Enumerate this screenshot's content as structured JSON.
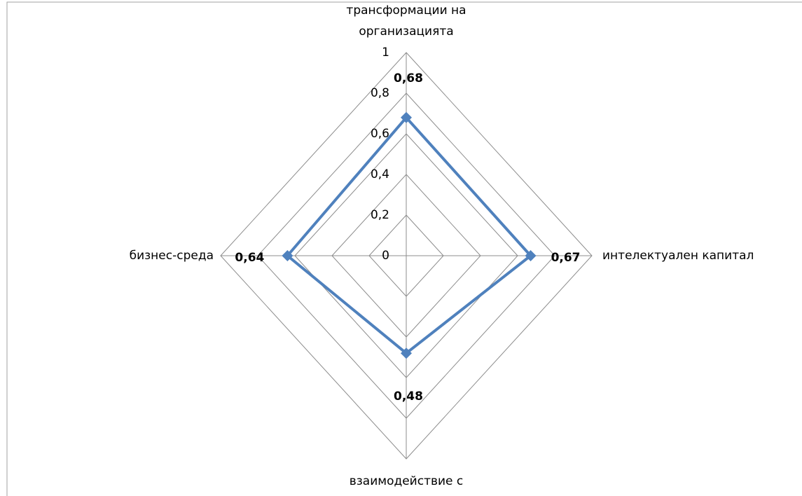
{
  "chart_data": {
    "type": "radar",
    "categories": [
      "трансформации на организацията",
      "интелектуален капитал",
      "взаимодействие с",
      "бизнес-среда"
    ],
    "values": [
      0.68,
      0.67,
      0.48,
      0.64
    ],
    "value_labels": [
      "0,68",
      "0,67",
      "0,48",
      "0,64"
    ],
    "color": "#4f81bd",
    "ylim": [
      0,
      1
    ],
    "yticks": [
      0,
      {
        "value": 0.2,
        "label": "0,2"
      },
      {
        "value": 0.4,
        "label": "0,4"
      },
      {
        "value": 0.6,
        "label": "0,6"
      },
      {
        "value": 0.8,
        "label": "0,8"
      },
      1
    ],
    "grid": true
  }
}
